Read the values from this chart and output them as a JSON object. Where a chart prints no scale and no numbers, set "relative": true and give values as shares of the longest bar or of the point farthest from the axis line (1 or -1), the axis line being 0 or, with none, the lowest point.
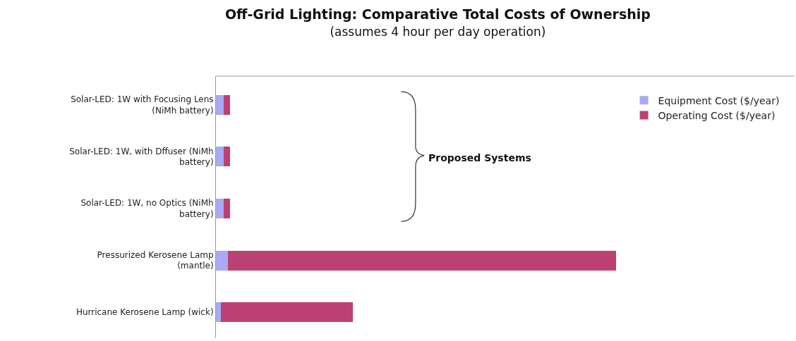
{
  "chart_data": {
    "type": "bar",
    "orientation": "horizontal",
    "stacked": true,
    "relative": true,
    "title": "Off-Grid Lighting: Comparative Total Costs of Ownership",
    "subtitle": "(assumes 4 hour per day operation)",
    "categories": [
      "Solar-LED: 1W with Focusing Lens\n(NiMh battery)",
      "Solar-LED: 1W, with Dffuser (NiMh\nbattery)",
      "Solar-LED: 1W, no Optics (NiMh\nbattery)",
      "Pressurized Kerosene Lamp\n(mantle)",
      "Hurricane Kerosene Lamp (wick)"
    ],
    "series": [
      {
        "name": "Equipment Cost ($/year)",
        "color": "#a9a9f5",
        "values": [
          0.019,
          0.019,
          0.019,
          0.03,
          0.012
        ]
      },
      {
        "name": "Operating Cost ($/year)",
        "color": "#bb4174",
        "values": [
          0.016,
          0.016,
          0.016,
          0.97,
          0.33
        ]
      }
    ],
    "annotations": [
      "Proposed Systems"
    ],
    "legend": "top right"
  }
}
